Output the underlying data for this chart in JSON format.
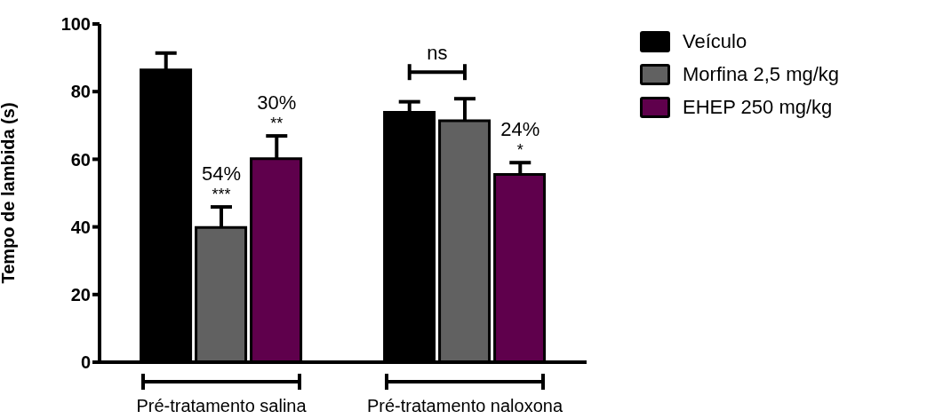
{
  "chart_data": {
    "type": "bar",
    "ylabel": "Tempo de lambida (s)",
    "categories": [
      "Pré-tratamento salina",
      "Pré-tratamento naloxona"
    ],
    "series": [
      {
        "name": "Veículo",
        "color": "#000000",
        "values": [
          86.4,
          73.9
        ],
        "errors": [
          [
            86.4,
            91.4
          ],
          [
            73.9,
            77
          ]
        ]
      },
      {
        "name": "Morfina 2,5 mg/kg",
        "color": "#616161",
        "values": [
          39.8,
          71.4
        ],
        "errors": [
          [
            39.8,
            45.9
          ],
          [
            71.4,
            77.9
          ]
        ]
      },
      {
        "name": "EHEP 250 mg/kg",
        "color": "#5f004c",
        "values": [
          60.2,
          55.5
        ],
        "errors": [
          [
            60.2,
            66.9
          ],
          [
            55.5,
            59
          ]
        ]
      }
    ],
    "annotations": [
      "54%\n***",
      "30%\n**",
      "24%\n*",
      "ns"
    ],
    "ylim": [
      0,
      100
    ],
    "yticks": [
      0,
      20,
      40,
      60,
      80,
      100
    ],
    "grid": false,
    "legend": "top right"
  }
}
